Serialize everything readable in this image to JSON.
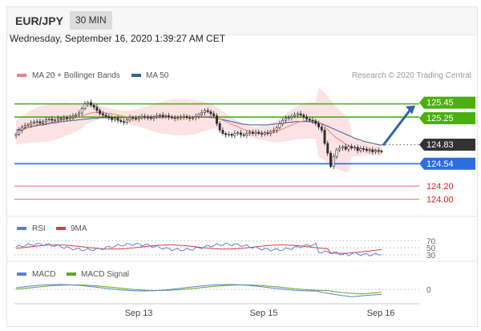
{
  "header": {
    "pair": "EUR/JPY",
    "timeframe": "30 MIN"
  },
  "timestamp": "Wednesday, September 16, 2020 1:39:27 AM CET",
  "legend": {
    "ma20": "MA 20 + Bollinger Bands",
    "ma50": "MA 50",
    "credit": "Research © 2020 Trading Central"
  },
  "colors": {
    "ma20": "#f08080",
    "ma50": "#3a5f8f",
    "band": "#fbd8d8",
    "candle": "#2e2e2e",
    "resistance": "#4caf10",
    "pivot": "#2a6ee0",
    "support": "#f06a6a",
    "current": "#333333",
    "arrow": "#2f65a8",
    "rsi": "#5b7fdb",
    "rsi_ma": "#e23a3a",
    "macd": "#5b7fdb",
    "macd_signal": "#5aa820"
  },
  "chart_data": [
    {
      "type": "candlestick",
      "name": "price",
      "x_ticks": [
        "Sep 13",
        "Sep 15",
        "Sep 16"
      ],
      "ylim": [
        123.8,
        125.75
      ],
      "close": [
        124.99,
        125.05,
        125.1,
        125.12,
        125.13,
        125.16,
        125.17,
        125.18,
        125.16,
        125.18,
        125.21,
        125.22,
        125.2,
        125.21,
        125.23,
        125.22,
        125.24,
        125.23,
        125.25,
        125.27,
        125.28,
        125.31,
        125.38,
        125.45,
        125.47,
        125.43,
        125.4,
        125.35,
        125.3,
        125.28,
        125.26,
        125.24,
        125.21,
        125.23,
        125.2,
        125.18,
        125.17,
        125.21,
        125.24,
        125.23,
        125.22,
        125.24,
        125.26,
        125.25,
        125.24,
        125.23,
        125.25,
        125.27,
        125.28,
        125.26,
        125.27,
        125.25,
        125.24,
        125.23,
        125.24,
        125.25,
        125.26,
        125.24,
        125.23,
        125.24,
        125.26,
        125.29,
        125.32,
        125.35,
        125.33,
        125.3,
        125.27,
        125.15,
        125.05,
        125.0,
        124.98,
        124.99,
        124.97,
        125.0,
        125.01,
        124.98,
        124.97,
        125.0,
        125.02,
        125.0,
        125.02,
        125.0,
        124.99,
        125.01,
        125.0,
        125.03,
        125.05,
        125.09,
        125.15,
        125.2,
        125.23,
        125.24,
        125.26,
        125.28,
        125.3,
        125.28,
        125.25,
        125.22,
        125.2,
        125.19,
        125.15,
        125.1,
        125.05,
        124.85,
        124.7,
        124.5,
        124.65,
        124.75,
        124.78,
        124.8,
        124.76,
        124.8,
        124.78,
        124.79,
        124.74,
        124.77,
        124.76,
        124.74,
        124.75,
        124.72,
        124.74,
        124.73,
        124.72
      ],
      "ma20": [
        125.02,
        125.03,
        125.05,
        125.07,
        125.09,
        125.11,
        125.12,
        125.13,
        125.14,
        125.15,
        125.15,
        125.16,
        125.17,
        125.18,
        125.19,
        125.2,
        125.21,
        125.22,
        125.22,
        125.23,
        125.24,
        125.25,
        125.26,
        125.28,
        125.3,
        125.31,
        125.32,
        125.32,
        125.32,
        125.32,
        125.31,
        125.3,
        125.3,
        125.29,
        125.28,
        125.27,
        125.26,
        125.25,
        125.25,
        125.24,
        125.24,
        125.24,
        125.24,
        125.24,
        125.24,
        125.24,
        125.24,
        125.24,
        125.24,
        125.24,
        125.25,
        125.25,
        125.25,
        125.25,
        125.25,
        125.25,
        125.25,
        125.25,
        125.25,
        125.25,
        125.25,
        125.25,
        125.26,
        125.26,
        125.26,
        125.26,
        125.25,
        125.24,
        125.22,
        125.2,
        125.18,
        125.16,
        125.14,
        125.12,
        125.1,
        125.08,
        125.06,
        125.05,
        125.03,
        125.02,
        125.01,
        125.01,
        125.01,
        125.01,
        125.01,
        125.01,
        125.02,
        125.03,
        125.05,
        125.07,
        125.09,
        125.11,
        125.13,
        125.15,
        125.17,
        125.18,
        125.19,
        125.2,
        125.2,
        125.2,
        125.19,
        125.17,
        125.14,
        125.1,
        125.06,
        125.01,
        124.97,
        124.93,
        124.9,
        124.87,
        124.84,
        124.82,
        124.8,
        124.79,
        124.78,
        124.77,
        124.77,
        124.76,
        124.76,
        124.75,
        124.75,
        124.74,
        124.74
      ],
      "ma50": [
        125.05,
        125.06,
        125.07,
        125.08,
        125.09,
        125.1,
        125.11,
        125.12,
        125.13,
        125.13,
        125.14,
        125.15,
        125.16,
        125.16,
        125.17,
        125.18,
        125.18,
        125.19,
        125.19,
        125.2,
        125.2,
        125.21,
        125.21,
        125.22,
        125.22,
        125.23,
        125.23,
        125.23,
        125.24,
        125.24,
        125.24,
        125.24,
        125.24,
        125.24,
        125.24,
        125.24,
        125.24,
        125.24,
        125.24,
        125.24,
        125.24,
        125.24,
        125.24,
        125.24,
        125.25,
        125.25,
        125.25,
        125.25,
        125.25,
        125.25,
        125.25,
        125.25,
        125.25,
        125.25,
        125.25,
        125.25,
        125.25,
        125.25,
        125.25,
        125.25,
        125.25,
        125.25,
        125.25,
        125.25,
        125.25,
        125.24,
        125.24,
        125.23,
        125.22,
        125.21,
        125.2,
        125.19,
        125.18,
        125.17,
        125.16,
        125.15,
        125.14,
        125.14,
        125.13,
        125.13,
        125.13,
        125.13,
        125.13,
        125.13,
        125.13,
        125.14,
        125.14,
        125.15,
        125.15,
        125.16,
        125.16,
        125.17,
        125.17,
        125.18,
        125.18,
        125.18,
        125.18,
        125.18,
        125.18,
        125.17,
        125.17,
        125.16,
        125.15,
        125.13,
        125.11,
        125.09,
        125.07,
        125.05,
        125.03,
        125.01,
        124.99,
        124.97,
        124.95,
        124.93,
        124.91,
        124.9,
        124.88,
        124.87,
        124.86,
        124.85,
        124.84,
        124.83,
        124.82
      ],
      "levels": [
        {
          "value": 125.45,
          "label": "125.45",
          "kind": "resistance"
        },
        {
          "value": 125.25,
          "label": "125.25",
          "kind": "resistance"
        },
        {
          "value": 124.83,
          "label": "124.83",
          "kind": "current"
        },
        {
          "value": 124.54,
          "label": "124.54",
          "kind": "pivot"
        },
        {
          "value": 124.2,
          "label": "124.20",
          "kind": "support"
        },
        {
          "value": 124.0,
          "label": "124.00",
          "kind": "support"
        }
      ],
      "arrow": {
        "from": 124.82,
        "to": 125.45
      }
    },
    {
      "type": "line",
      "name": "rsi",
      "series": [
        {
          "name": "RSI"
        },
        {
          "name": "9MA"
        }
      ],
      "levels": [
        "70",
        "50",
        "30"
      ],
      "ylim": [
        25,
        80
      ]
    },
    {
      "type": "line",
      "name": "macd",
      "series": [
        {
          "name": "MACD"
        },
        {
          "name": "MACD Signal"
        }
      ],
      "levels": [
        "0"
      ]
    }
  ]
}
